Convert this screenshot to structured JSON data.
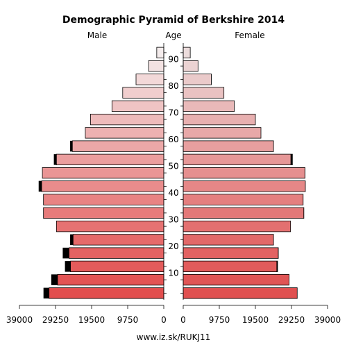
{
  "chart_data": {
    "type": "bar",
    "title": "Demographic Pyramid of Berkshire 2014",
    "left_label": "Male",
    "center_label": "Age",
    "right_label": "Female",
    "footer": "www.iz.sk/RUKJ11",
    "xlim": [
      0,
      39000
    ],
    "x_ticks": [
      "39000",
      "29250",
      "19500",
      "9750",
      "0",
      "9750",
      "19500",
      "29250",
      "39000"
    ],
    "age_ticks": [
      "10",
      "20",
      "30",
      "40",
      "50",
      "60",
      "70",
      "80",
      "90"
    ],
    "age_groups": [
      "0-4",
      "5-9",
      "10-14",
      "15-19",
      "20-24",
      "25-29",
      "30-34",
      "35-39",
      "40-44",
      "45-49",
      "50-54",
      "55-59",
      "60-64",
      "65-69",
      "70-74",
      "75-79",
      "80-84",
      "85-89",
      "90+"
    ],
    "series": [
      {
        "name": "Male",
        "values": [
          31000,
          28700,
          25200,
          25600,
          24500,
          29000,
          32500,
          32500,
          33000,
          32800,
          29000,
          24700,
          21200,
          19800,
          14000,
          11100,
          7500,
          4100,
          1900
        ],
        "extra": [
          1500,
          1700,
          1500,
          1700,
          800,
          0,
          0,
          0,
          800,
          0,
          700,
          600,
          0,
          0,
          0,
          0,
          0,
          0,
          0
        ]
      },
      {
        "name": "Female",
        "values": [
          30800,
          28600,
          25500,
          25700,
          24400,
          29000,
          32600,
          32400,
          33000,
          32900,
          29500,
          24400,
          21000,
          19500,
          13800,
          11000,
          7600,
          4000,
          1900
        ]
      }
    ]
  }
}
